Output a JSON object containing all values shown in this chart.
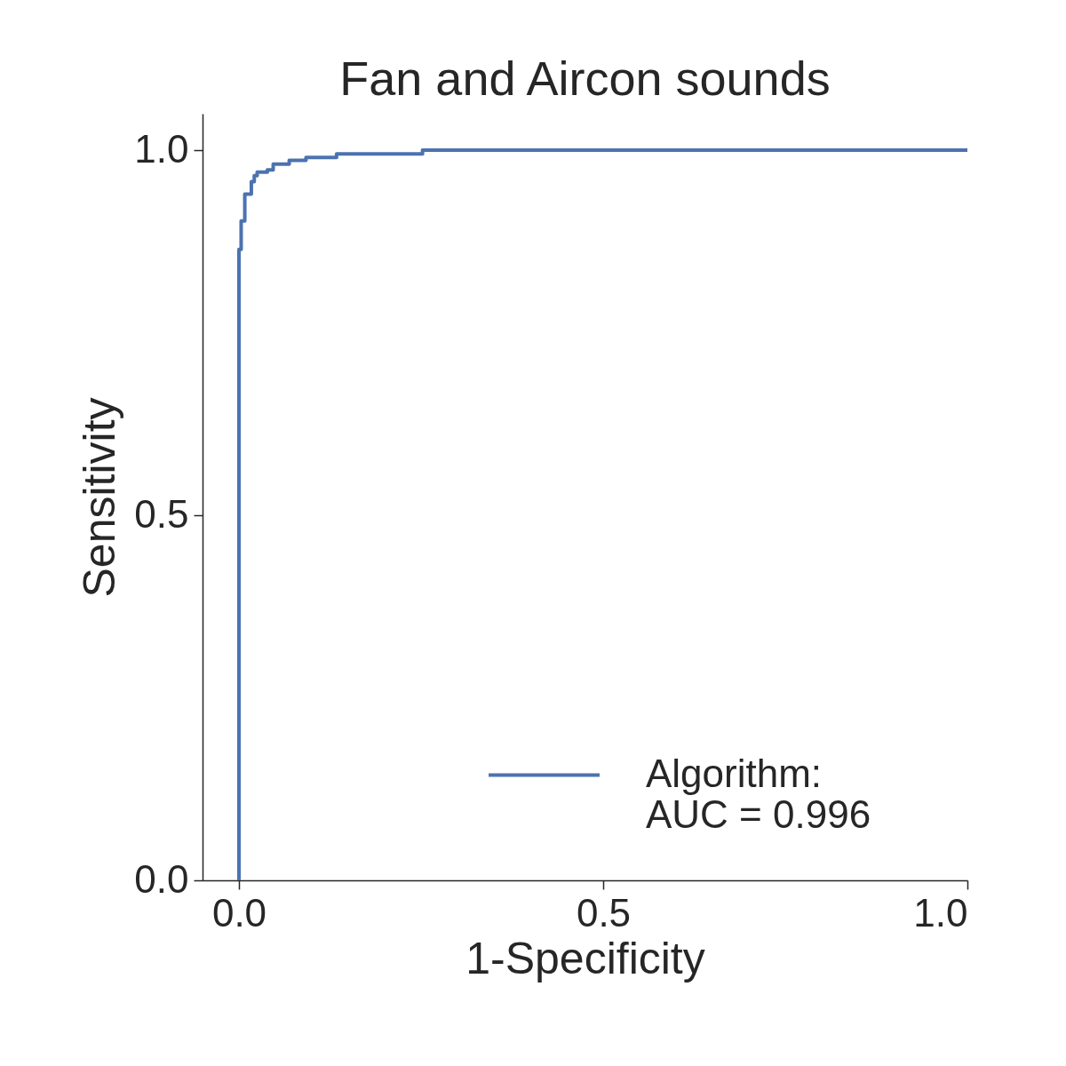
{
  "chart_data": {
    "type": "step",
    "title": "Fan and Aircon sounds",
    "xlabel": "1-Specificity",
    "ylabel": "Sensitivity",
    "x": [
      0,
      0,
      0.003,
      0.008,
      0.017,
      0.021,
      0.025,
      0.039,
      0.047,
      0.069,
      0.092,
      0.134,
      0.252,
      1
    ],
    "series": [
      {
        "name": "Algorithm:\nAUC = 0.996",
        "color": "#4c72b0",
        "values": [
          0,
          0.864,
          0.903,
          0.94,
          0.957,
          0.965,
          0.97,
          0.973,
          0.981,
          0.986,
          0.99,
          0.995,
          1.0,
          1.0
        ]
      }
    ],
    "xlim": [
      -0.05,
      1
    ],
    "ylim": [
      0,
      1.05
    ],
    "xticks": [
      {
        "value": 0,
        "label": "0.0"
      },
      {
        "value": 0.5,
        "label": "0.5"
      },
      {
        "value": 1,
        "label": "1.0"
      }
    ],
    "yticks": [
      {
        "value": 0,
        "label": "0.0"
      },
      {
        "value": 0.5,
        "label": "0.5"
      },
      {
        "value": 1,
        "label": "1.0"
      }
    ],
    "grid": false,
    "legend": "bottom right"
  }
}
